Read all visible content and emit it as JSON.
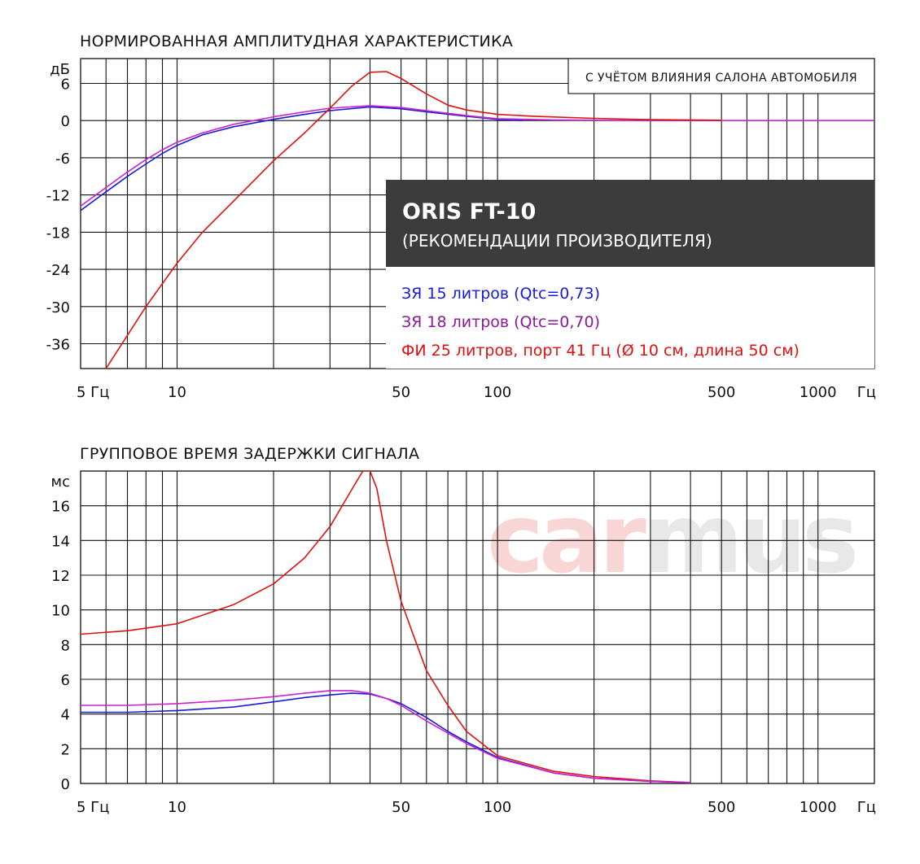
{
  "chart_data": [
    {
      "type": "line",
      "title": "НОРМИРОВАННАЯ АМПЛИТУДНАЯ ХАРАКТЕРИСТИКА",
      "annotation": "С УЧЁТОМ ВЛИЯНИЯ САЛОНА АВТОМОБИЛЯ",
      "ylabel": "дБ",
      "xlabel": "Гц",
      "x_scale": "log",
      "xlim": [
        5,
        1500
      ],
      "ylim": [
        -40,
        10
      ],
      "x_ticks": [
        "5 Гц",
        "10",
        "50",
        "100",
        "500",
        "1000",
        "Гц"
      ],
      "y_ticks": [
        "6",
        "0",
        "-6",
        "-12",
        "-18",
        "-24",
        "-30",
        "-36"
      ],
      "grid": true,
      "product_box": {
        "title": "ORIS FT-10",
        "subtitle": "(РЕКОМЕНДАЦИИ ПРОИЗВОДИТЕЛЯ)",
        "legend": [
          {
            "label": "ЗЯ 15 литров (Qtc=0,73)",
            "color": "#1a1adb"
          },
          {
            "label": "ЗЯ 18 литров (Qtc=0,70)",
            "color": "#8a1a9a"
          },
          {
            "label": "ФИ 25 литров, порт 41 Гц (Ø 10 см, длина 50 см)",
            "color": "#e01010"
          }
        ]
      },
      "series": [
        {
          "color": "#1a1adb",
          "x": [
            5,
            6,
            7,
            8,
            9,
            10,
            12,
            15,
            20,
            25,
            30,
            40,
            50,
            60,
            80,
            100,
            120
          ],
          "y": [
            -14.5,
            -11.5,
            -9,
            -7,
            -5.3,
            -4,
            -2.3,
            -1,
            0.2,
            1,
            1.6,
            2.2,
            1.9,
            1.4,
            0.7,
            0.2,
            0
          ]
        },
        {
          "color": "#cc22cc",
          "x": [
            5,
            6,
            7,
            8,
            9,
            10,
            12,
            15,
            20,
            25,
            30,
            40,
            50,
            60,
            80,
            100,
            150,
            200,
            300,
            500,
            700,
            1000,
            1500
          ],
          "y": [
            -13.8,
            -10.8,
            -8.3,
            -6.3,
            -4.7,
            -3.5,
            -2,
            -0.6,
            0.6,
            1.4,
            2,
            2.4,
            2.1,
            1.6,
            0.8,
            0.3,
            0.1,
            0.05,
            0,
            0,
            0,
            0,
            0
          ]
        },
        {
          "color": "#e01010",
          "x": [
            6,
            8,
            10,
            12,
            15,
            20,
            25,
            30,
            35,
            40,
            45,
            50,
            60,
            70,
            80,
            100,
            130,
            200,
            300,
            500
          ],
          "y": [
            -40,
            -30,
            -23,
            -18,
            -13,
            -6.5,
            -2,
            2,
            5.5,
            7.8,
            7.9,
            6.8,
            4.3,
            2.5,
            1.7,
            1.0,
            0.7,
            0.35,
            0.15,
            0.05
          ]
        }
      ]
    },
    {
      "type": "line",
      "title": "ГРУППОВОЕ ВРЕМЯ ЗАДЕРЖКИ СИГНАЛА",
      "ylabel": "мс",
      "xlabel": "Гц",
      "x_scale": "log",
      "xlim": [
        5,
        1500
      ],
      "ylim": [
        0,
        18
      ],
      "x_ticks": [
        "5 Гц",
        "10",
        "50",
        "100",
        "500",
        "1000",
        "Гц"
      ],
      "y_ticks": [
        "16",
        "14",
        "12",
        "10",
        "8",
        "6",
        "4",
        "2",
        "0"
      ],
      "grid": true,
      "series": [
        {
          "color": "#e01010",
          "x": [
            5,
            7,
            10,
            15,
            20,
            25,
            30,
            35,
            38,
            40,
            42,
            45,
            50,
            55,
            60,
            70,
            80,
            100,
            150,
            200,
            300,
            400
          ],
          "y": [
            8.6,
            8.8,
            9.2,
            10.3,
            11.5,
            13,
            14.8,
            16.9,
            18,
            18,
            17,
            14,
            10.5,
            8.4,
            6.5,
            4.5,
            3.0,
            1.6,
            0.7,
            0.4,
            0.15,
            0.05
          ]
        },
        {
          "color": "#1a1adb",
          "x": [
            5,
            7,
            10,
            15,
            20,
            25,
            30,
            35,
            40,
            45,
            50,
            60,
            70,
            80,
            100,
            150,
            200,
            300,
            400
          ],
          "y": [
            4.1,
            4.1,
            4.2,
            4.4,
            4.7,
            4.95,
            5.1,
            5.2,
            5.15,
            4.9,
            4.6,
            3.8,
            3.0,
            2.4,
            1.5,
            0.6,
            0.3,
            0.12,
            0.05
          ]
        },
        {
          "color": "#cc22cc",
          "x": [
            5,
            7,
            10,
            15,
            20,
            25,
            30,
            35,
            40,
            45,
            50,
            60,
            70,
            80,
            100,
            150,
            200,
            300,
            400
          ],
          "y": [
            4.5,
            4.5,
            4.6,
            4.8,
            5.0,
            5.2,
            5.35,
            5.35,
            5.2,
            4.9,
            4.5,
            3.6,
            2.9,
            2.3,
            1.45,
            0.6,
            0.3,
            0.12,
            0.05
          ]
        }
      ]
    }
  ],
  "watermark": {
    "part1": "car",
    "part2": "mus",
    "color1": "#f8d6d6",
    "color2": "#e8e8e8"
  }
}
